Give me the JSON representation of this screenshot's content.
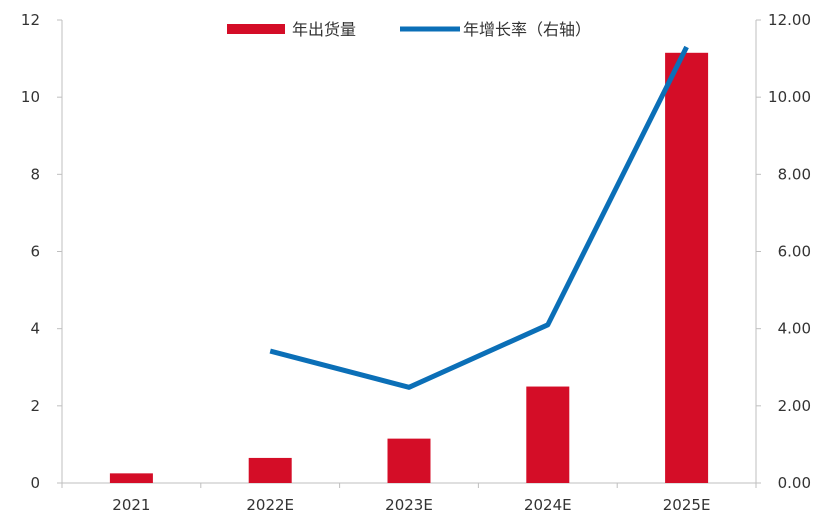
{
  "chart_data": {
    "type": "bar+line",
    "categories": [
      "2021",
      "2022E",
      "2023E",
      "2024E",
      "2025E"
    ],
    "series": [
      {
        "name": "年出货量",
        "type": "bar",
        "axis": "left",
        "color": "#D40D27",
        "values": [
          0.25,
          0.65,
          1.15,
          2.5,
          11.15
        ]
      },
      {
        "name": "年增长率（右轴）",
        "type": "line",
        "axis": "right",
        "color": "#0B6FB7",
        "values": [
          null,
          3.42,
          2.48,
          4.1,
          11.3
        ]
      }
    ],
    "y_left": {
      "min": 0,
      "max": 12,
      "ticks": [
        "0",
        "2",
        "4",
        "6",
        "8",
        "10",
        "12"
      ]
    },
    "y_right": {
      "min": 0,
      "max": 12,
      "ticks": [
        "0.00",
        "2.00",
        "4.00",
        "6.00",
        "8.00",
        "10.00",
        "12.00"
      ]
    },
    "legend": {
      "position": "top-center",
      "items": [
        "年出货量",
        "年增长率（右轴）"
      ]
    },
    "grid": false
  }
}
